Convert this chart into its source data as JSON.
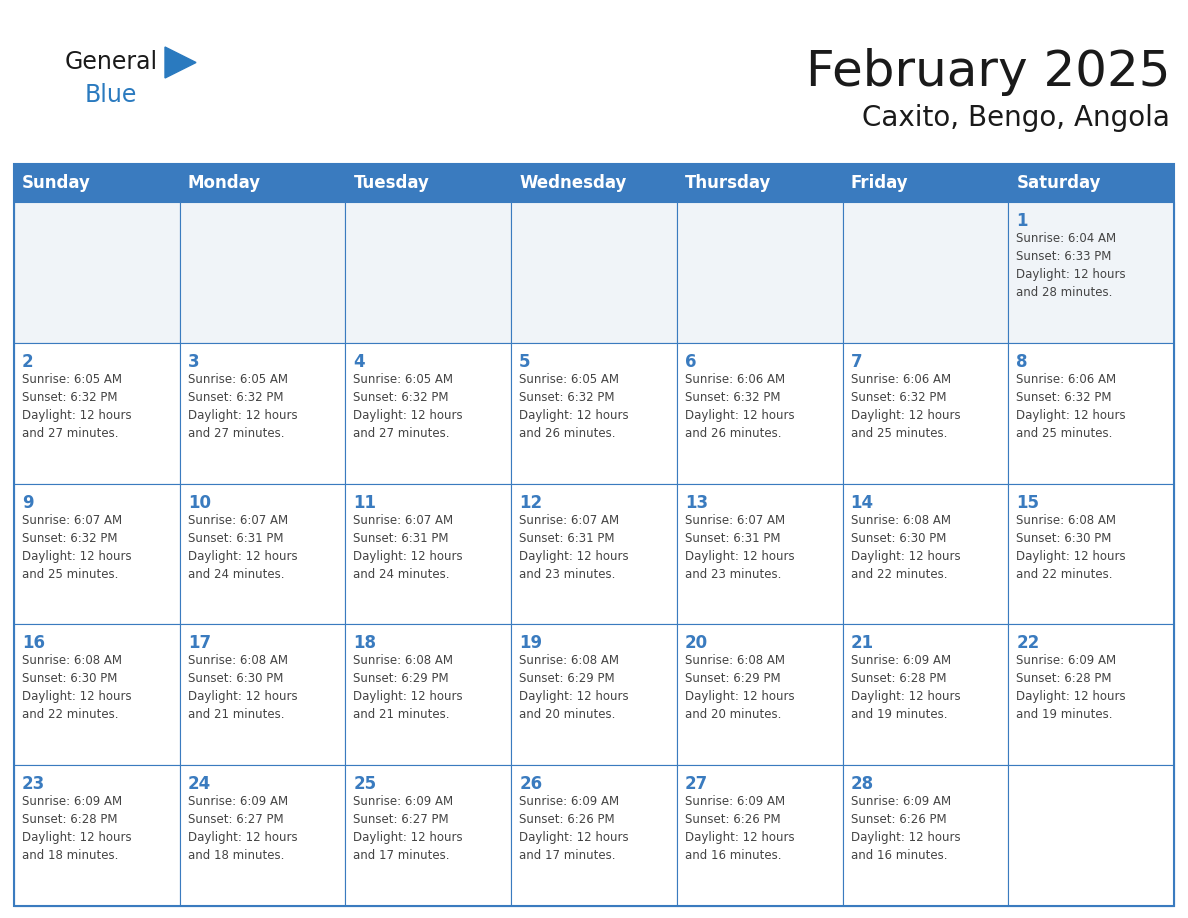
{
  "title": "February 2025",
  "subtitle": "Caxito, Bengo, Angola",
  "days_of_week": [
    "Sunday",
    "Monday",
    "Tuesday",
    "Wednesday",
    "Thursday",
    "Friday",
    "Saturday"
  ],
  "header_bg_color": "#3a7bbf",
  "header_text_color": "#ffffff",
  "cell_bg_color": "#ffffff",
  "cell_bg_alt_color": "#f0f4f8",
  "cell_border_color": "#3a7bbf",
  "day_number_color": "#3a7bbf",
  "info_text_color": "#444444",
  "background_color": "#ffffff",
  "title_color": "#1a1a1a",
  "subtitle_color": "#1a1a1a",
  "logo_general_color": "#1a1a1a",
  "logo_blue_color": "#2a7abf",
  "calendar_data": [
    [
      null,
      null,
      null,
      null,
      null,
      null,
      1
    ],
    [
      2,
      3,
      4,
      5,
      6,
      7,
      8
    ],
    [
      9,
      10,
      11,
      12,
      13,
      14,
      15
    ],
    [
      16,
      17,
      18,
      19,
      20,
      21,
      22
    ],
    [
      23,
      24,
      25,
      26,
      27,
      28,
      null
    ]
  ],
  "sunrise_data": {
    "1": "Sunrise: 6:04 AM\nSunset: 6:33 PM\nDaylight: 12 hours\nand 28 minutes.",
    "2": "Sunrise: 6:05 AM\nSunset: 6:32 PM\nDaylight: 12 hours\nand 27 minutes.",
    "3": "Sunrise: 6:05 AM\nSunset: 6:32 PM\nDaylight: 12 hours\nand 27 minutes.",
    "4": "Sunrise: 6:05 AM\nSunset: 6:32 PM\nDaylight: 12 hours\nand 27 minutes.",
    "5": "Sunrise: 6:05 AM\nSunset: 6:32 PM\nDaylight: 12 hours\nand 26 minutes.",
    "6": "Sunrise: 6:06 AM\nSunset: 6:32 PM\nDaylight: 12 hours\nand 26 minutes.",
    "7": "Sunrise: 6:06 AM\nSunset: 6:32 PM\nDaylight: 12 hours\nand 25 minutes.",
    "8": "Sunrise: 6:06 AM\nSunset: 6:32 PM\nDaylight: 12 hours\nand 25 minutes.",
    "9": "Sunrise: 6:07 AM\nSunset: 6:32 PM\nDaylight: 12 hours\nand 25 minutes.",
    "10": "Sunrise: 6:07 AM\nSunset: 6:31 PM\nDaylight: 12 hours\nand 24 minutes.",
    "11": "Sunrise: 6:07 AM\nSunset: 6:31 PM\nDaylight: 12 hours\nand 24 minutes.",
    "12": "Sunrise: 6:07 AM\nSunset: 6:31 PM\nDaylight: 12 hours\nand 23 minutes.",
    "13": "Sunrise: 6:07 AM\nSunset: 6:31 PM\nDaylight: 12 hours\nand 23 minutes.",
    "14": "Sunrise: 6:08 AM\nSunset: 6:30 PM\nDaylight: 12 hours\nand 22 minutes.",
    "15": "Sunrise: 6:08 AM\nSunset: 6:30 PM\nDaylight: 12 hours\nand 22 minutes.",
    "16": "Sunrise: 6:08 AM\nSunset: 6:30 PM\nDaylight: 12 hours\nand 22 minutes.",
    "17": "Sunrise: 6:08 AM\nSunset: 6:30 PM\nDaylight: 12 hours\nand 21 minutes.",
    "18": "Sunrise: 6:08 AM\nSunset: 6:29 PM\nDaylight: 12 hours\nand 21 minutes.",
    "19": "Sunrise: 6:08 AM\nSunset: 6:29 PM\nDaylight: 12 hours\nand 20 minutes.",
    "20": "Sunrise: 6:08 AM\nSunset: 6:29 PM\nDaylight: 12 hours\nand 20 minutes.",
    "21": "Sunrise: 6:09 AM\nSunset: 6:28 PM\nDaylight: 12 hours\nand 19 minutes.",
    "22": "Sunrise: 6:09 AM\nSunset: 6:28 PM\nDaylight: 12 hours\nand 19 minutes.",
    "23": "Sunrise: 6:09 AM\nSunset: 6:28 PM\nDaylight: 12 hours\nand 18 minutes.",
    "24": "Sunrise: 6:09 AM\nSunset: 6:27 PM\nDaylight: 12 hours\nand 18 minutes.",
    "25": "Sunrise: 6:09 AM\nSunset: 6:27 PM\nDaylight: 12 hours\nand 17 minutes.",
    "26": "Sunrise: 6:09 AM\nSunset: 6:26 PM\nDaylight: 12 hours\nand 17 minutes.",
    "27": "Sunrise: 6:09 AM\nSunset: 6:26 PM\nDaylight: 12 hours\nand 16 minutes.",
    "28": "Sunrise: 6:09 AM\nSunset: 6:26 PM\nDaylight: 12 hours\nand 16 minutes."
  }
}
